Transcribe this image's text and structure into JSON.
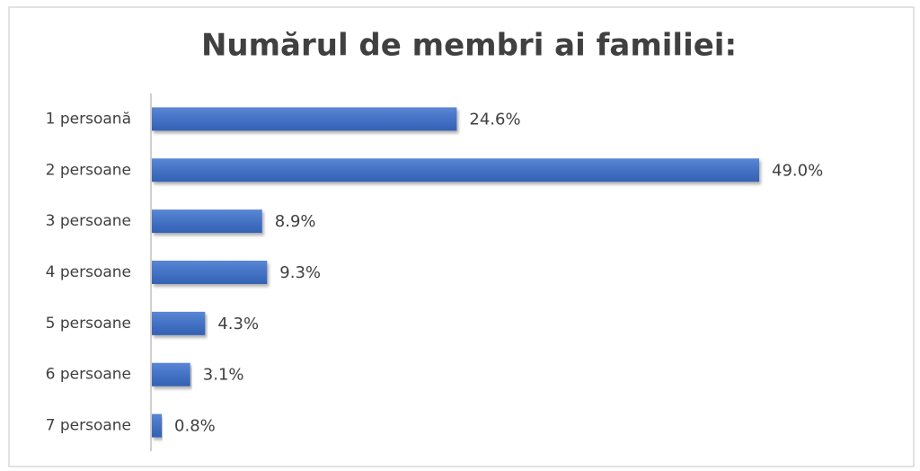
{
  "chart_data": {
    "type": "bar",
    "orientation": "horizontal",
    "title": "Numărul de membri ai familiei:",
    "categories": [
      "1 persoană",
      "2 persoane",
      "3 persoane",
      "4 persoane",
      "5 persoane",
      "6 persoane",
      "7 persoane"
    ],
    "values": [
      24.6,
      49.0,
      8.9,
      9.3,
      4.3,
      3.1,
      0.8
    ],
    "value_labels": [
      "24.6%",
      "49.0%",
      "8.9%",
      "9.3%",
      "4.3%",
      "3.1%",
      "0.8%"
    ],
    "color": "#4472c4"
  }
}
